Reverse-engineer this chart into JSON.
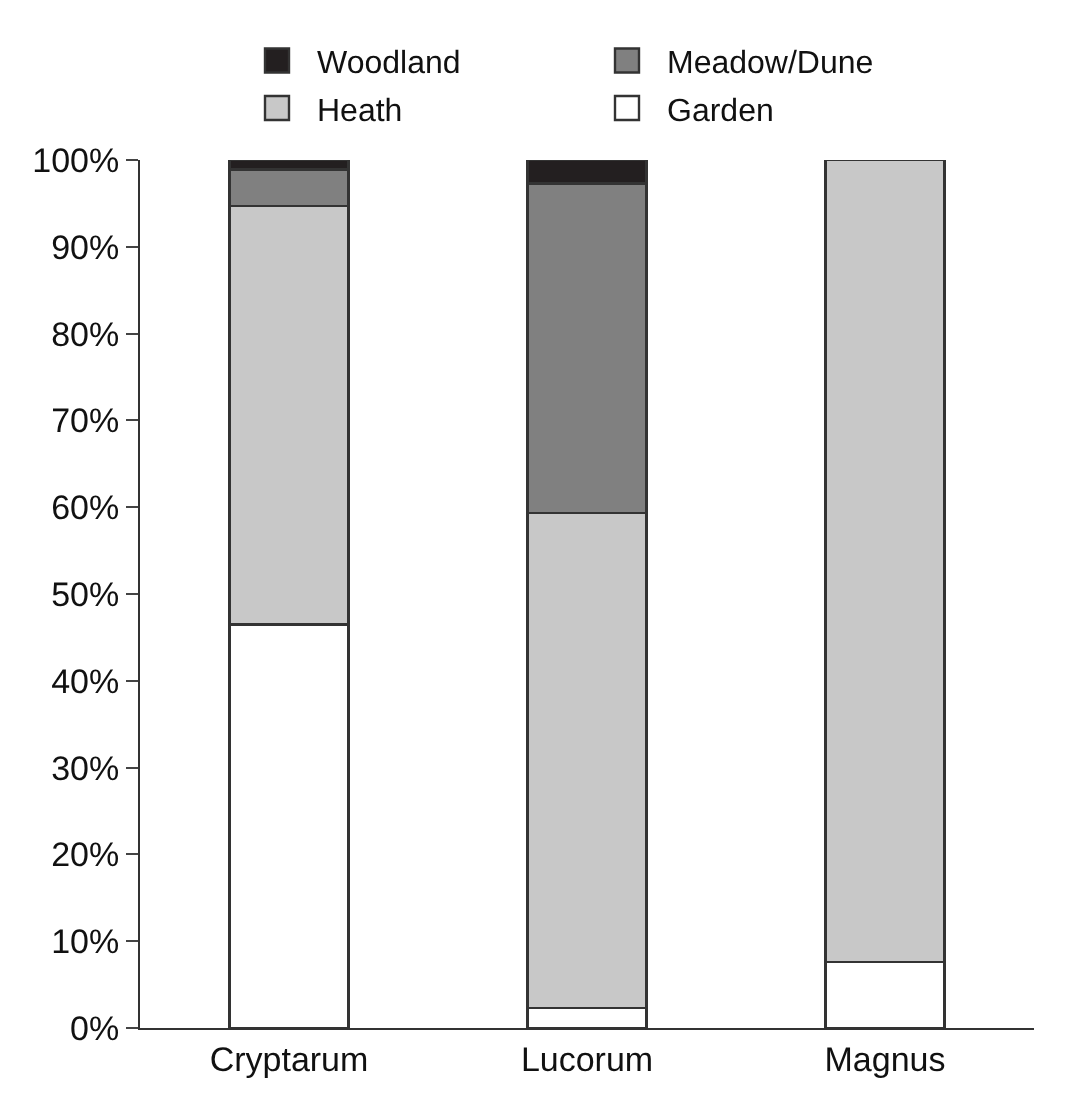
{
  "chart_data": {
    "type": "bar",
    "stacked": true,
    "categories": [
      "Cryptarum",
      "Lucorum",
      "Magnus"
    ],
    "series": [
      {
        "name": "Garden",
        "color": "#ffffff",
        "values": [
          46.5,
          2.3,
          7.6
        ]
      },
      {
        "name": "Heath",
        "color": "#c8c8c8",
        "values": [
          48.2,
          57.0,
          92.4
        ]
      },
      {
        "name": "Meadow/Dune",
        "color": "#808080",
        "values": [
          4.2,
          38.0,
          null
        ]
      },
      {
        "name": "Woodland",
        "color": "#231f20",
        "values": [
          1.1,
          2.7,
          null
        ]
      }
    ],
    "ylim": [
      0,
      100
    ],
    "yticks": [
      {
        "value": 0,
        "label": "0%"
      },
      {
        "value": 10,
        "label": "10%"
      },
      {
        "value": 20,
        "label": "20%"
      },
      {
        "value": 30,
        "label": "30%"
      },
      {
        "value": 40,
        "label": "40%"
      },
      {
        "value": 50,
        "label": "50%"
      },
      {
        "value": 60,
        "label": "60%"
      },
      {
        "value": 70,
        "label": "70%"
      },
      {
        "value": 80,
        "label": "80%"
      },
      {
        "value": 90,
        "label": "90%"
      },
      {
        "value": 100,
        "label": "100%"
      }
    ],
    "grid": false,
    "legend": "top"
  }
}
